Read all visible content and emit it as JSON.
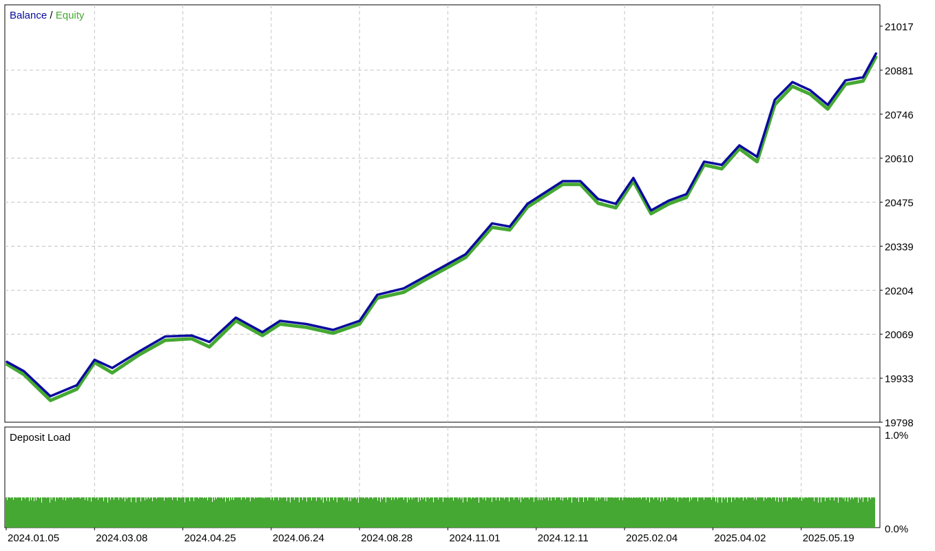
{
  "chart_data": [
    {
      "type": "line",
      "legend": {
        "placement": "top-left",
        "entries": [
          {
            "name": "Balance",
            "color": "#0a0a9e"
          },
          {
            "name": "Equity",
            "color": "#45a832"
          }
        ],
        "separator": " / "
      },
      "ylim": [
        19798,
        21017
      ],
      "y_ticks": [
        "21017",
        "20881",
        "20746",
        "20610",
        "20475",
        "20339",
        "20204",
        "20069",
        "19933",
        "19798"
      ],
      "grid": true,
      "grid_style": "dashed",
      "x_ticks": [
        "2024.01.05",
        "2024.03.08",
        "2024.04.25",
        "2024.06.24",
        "2024.08.28",
        "2024.11.01",
        "2024.12.11",
        "2025.02.04",
        "2025.04.02",
        "2025.05.19"
      ],
      "series": [
        {
          "name": "Balance",
          "color": "#0a0a9e",
          "x_index": [
            0,
            0.2,
            0.5,
            0.8,
            1.0,
            1.2,
            1.5,
            1.8,
            2.1,
            2.3,
            2.6,
            2.9,
            3.1,
            3.4,
            3.7,
            4.0,
            4.2,
            4.5,
            4.7,
            5.0,
            5.2,
            5.5,
            5.7,
            5.9,
            6.1,
            6.3,
            6.5,
            6.7,
            6.9,
            7.1,
            7.3,
            7.5,
            7.7,
            7.9,
            8.1,
            8.3,
            8.5,
            8.7,
            8.9,
            9.1,
            9.3,
            9.5,
            9.7,
            9.85
          ],
          "values": [
            19985,
            19955,
            19878,
            19912,
            19990,
            19965,
            20015,
            20062,
            20065,
            20045,
            20120,
            20075,
            20110,
            20100,
            20082,
            20110,
            20190,
            20210,
            20240,
            20285,
            20315,
            20410,
            20400,
            20470,
            20505,
            20540,
            20540,
            20485,
            20470,
            20550,
            20450,
            20480,
            20500,
            20600,
            20590,
            20650,
            20615,
            20790,
            20845,
            20820,
            20775,
            20850,
            20860,
            20935
          ]
        },
        {
          "name": "Equity",
          "color": "#45a832",
          "x_index": [
            0,
            0.2,
            0.5,
            0.8,
            1.0,
            1.2,
            1.5,
            1.8,
            2.1,
            2.3,
            2.6,
            2.9,
            3.1,
            3.4,
            3.7,
            4.0,
            4.2,
            4.5,
            4.7,
            5.0,
            5.2,
            5.5,
            5.7,
            5.9,
            6.1,
            6.3,
            6.5,
            6.7,
            6.9,
            7.1,
            7.3,
            7.5,
            7.7,
            7.9,
            8.1,
            8.3,
            8.5,
            8.7,
            8.9,
            9.1,
            9.3,
            9.5,
            9.7,
            9.85
          ],
          "values": [
            19978,
            19945,
            19865,
            19900,
            19982,
            19950,
            20005,
            20050,
            20055,
            20030,
            20110,
            20065,
            20100,
            20090,
            20072,
            20100,
            20180,
            20198,
            20230,
            20275,
            20305,
            20398,
            20390,
            20460,
            20495,
            20530,
            20530,
            20472,
            20458,
            20540,
            20440,
            20470,
            20490,
            20590,
            20578,
            20640,
            20600,
            20775,
            20832,
            20808,
            20762,
            20838,
            20848,
            20925
          ]
        }
      ]
    },
    {
      "type": "bar",
      "title": "Deposit Load",
      "ylim": [
        0,
        1
      ],
      "y_ticks": [
        "1.0%",
        "0.0%"
      ],
      "color": "#45a832",
      "bar_value_typical": 0.3
    }
  ]
}
